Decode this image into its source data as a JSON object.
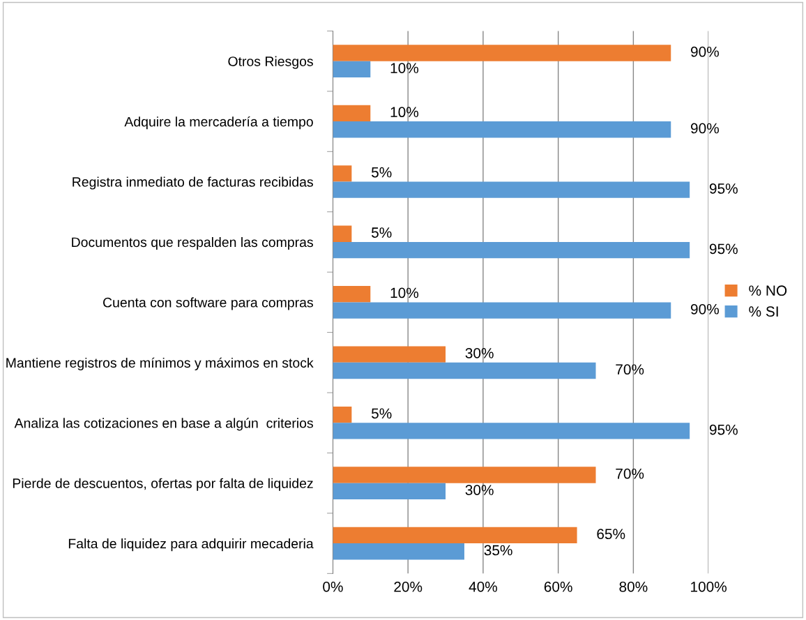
{
  "chart_data": {
    "type": "bar",
    "orientation": "horizontal",
    "categories": [
      "Otros Riesgos",
      "Adquire la mercadería a tiempo",
      "Registra inmediato de facturas recibidas",
      "Documentos que respalden las compras",
      "Cuenta con software para compras",
      "Mantiene registros de mínimos y máximos en stock",
      "Analiza las cotizaciones en base a algún  criterios",
      "Pierde de descuentos, ofertas por falta de liquidez",
      "Falta de liquidez para adquirir mecaderia"
    ],
    "series": [
      {
        "name": "% NO",
        "color": "#ed7d31",
        "values": [
          90,
          10,
          5,
          5,
          10,
          30,
          5,
          70,
          65
        ],
        "value_labels": [
          "90%",
          "10%",
          "5%",
          "5%",
          "10%",
          "30%",
          "5%",
          "70%",
          "65%"
        ]
      },
      {
        "name": "% SI",
        "color": "#5b9bd5",
        "values": [
          10,
          90,
          95,
          95,
          90,
          70,
          95,
          30,
          35
        ],
        "value_labels": [
          "10%",
          "90%",
          "95%",
          "95%",
          "90%",
          "70%",
          "95%",
          "30%",
          "35%"
        ]
      }
    ],
    "xlim": [
      0,
      100
    ],
    "xticks": [
      {
        "value": 0,
        "label": "0%"
      },
      {
        "value": 20,
        "label": "20%"
      },
      {
        "value": 40,
        "label": "40%"
      },
      {
        "value": 60,
        "label": "60%"
      },
      {
        "value": 80,
        "label": "80%"
      },
      {
        "value": 100,
        "label": "100%"
      }
    ],
    "grid": "x",
    "legend": "right"
  }
}
